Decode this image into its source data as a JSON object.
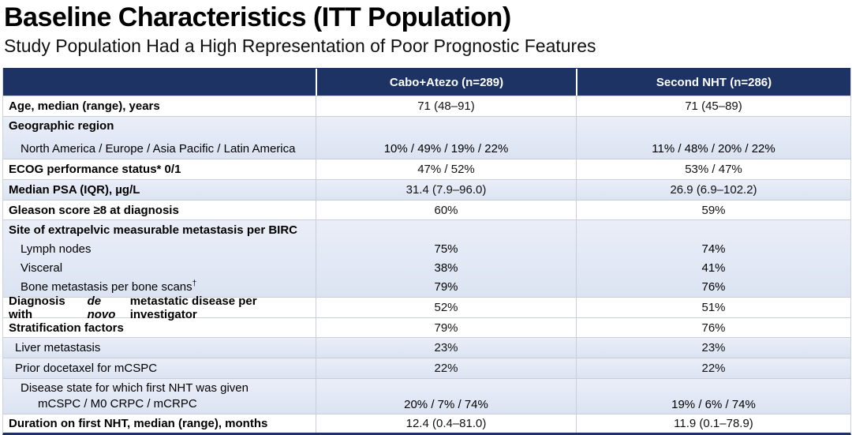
{
  "slide": {
    "title": "Baseline Characteristics (ITT Population)",
    "subtitle": "Study Population Had a High Representation of Poor Prognostic Features"
  },
  "colors": {
    "header_bg": "#1c3364",
    "band_blue": "#dde4f2",
    "row_white": "#ffffff",
    "header_text": "#ffffff",
    "grid_line": "#c9ced8",
    "bottom_border": "#1c3364"
  },
  "table": {
    "columns": [
      "",
      "Cabo+Atezo (n=289)",
      "Second NHT (n=286)"
    ],
    "rows": [
      {
        "label": "Age, median (range), years",
        "v1": "71 (48–91)",
        "v2": "71 (45–89)"
      },
      {
        "label": "Geographic region",
        "sublabel": "North America / Europe / Asia Pacific / Latin America",
        "v1": "10% / 49% / 19% / 22%",
        "v2": "11% / 48% / 20% / 22%"
      },
      {
        "label": "ECOG performance status* 0/1",
        "v1": "47% / 52%",
        "v2": "53% / 47%"
      },
      {
        "label": "Median PSA (IQR), µg/L",
        "v1": "31.4 (7.9–96.0)",
        "v2": "26.9 (6.9–102.2)"
      },
      {
        "label": "Gleason score ≥8 at diagnosis",
        "v1": "60%",
        "v2": "59%"
      },
      {
        "label": "Site of extrapelvic measurable metastasis per BIRC",
        "items": [
          {
            "label": "Lymph nodes",
            "v1": "75%",
            "v2": "74%"
          },
          {
            "label": "Visceral",
            "v1": "38%",
            "v2": "41%"
          },
          {
            "label": "Bone metastasis per bone scans",
            "sup": "†",
            "v1": "79%",
            "v2": "76%"
          }
        ]
      },
      {
        "label_pre": "Diagnosis with ",
        "label_italic": "de novo",
        "label_post": " metastatic disease per investigator",
        "v1": "52%",
        "v2": "51%"
      },
      {
        "label": "Stratification factors",
        "v1": "79%",
        "v2": "76%"
      },
      {
        "label": "Liver metastasis",
        "v1": "23%",
        "v2": "23%"
      },
      {
        "label": "Prior docetaxel for mCSPC",
        "v1": "22%",
        "v2": "22%"
      },
      {
        "label": "Disease state for which first NHT was given",
        "sublabel": "mCSPC / M0 CRPC / mCRPC",
        "v1": "20% / 7% / 74%",
        "v2": "19% / 6% / 74%"
      },
      {
        "label": "Duration on first NHT, median (range), months",
        "v1": "12.4 (0.4–81.0)",
        "v2": "11.9 (0.1–78.9)"
      }
    ]
  }
}
